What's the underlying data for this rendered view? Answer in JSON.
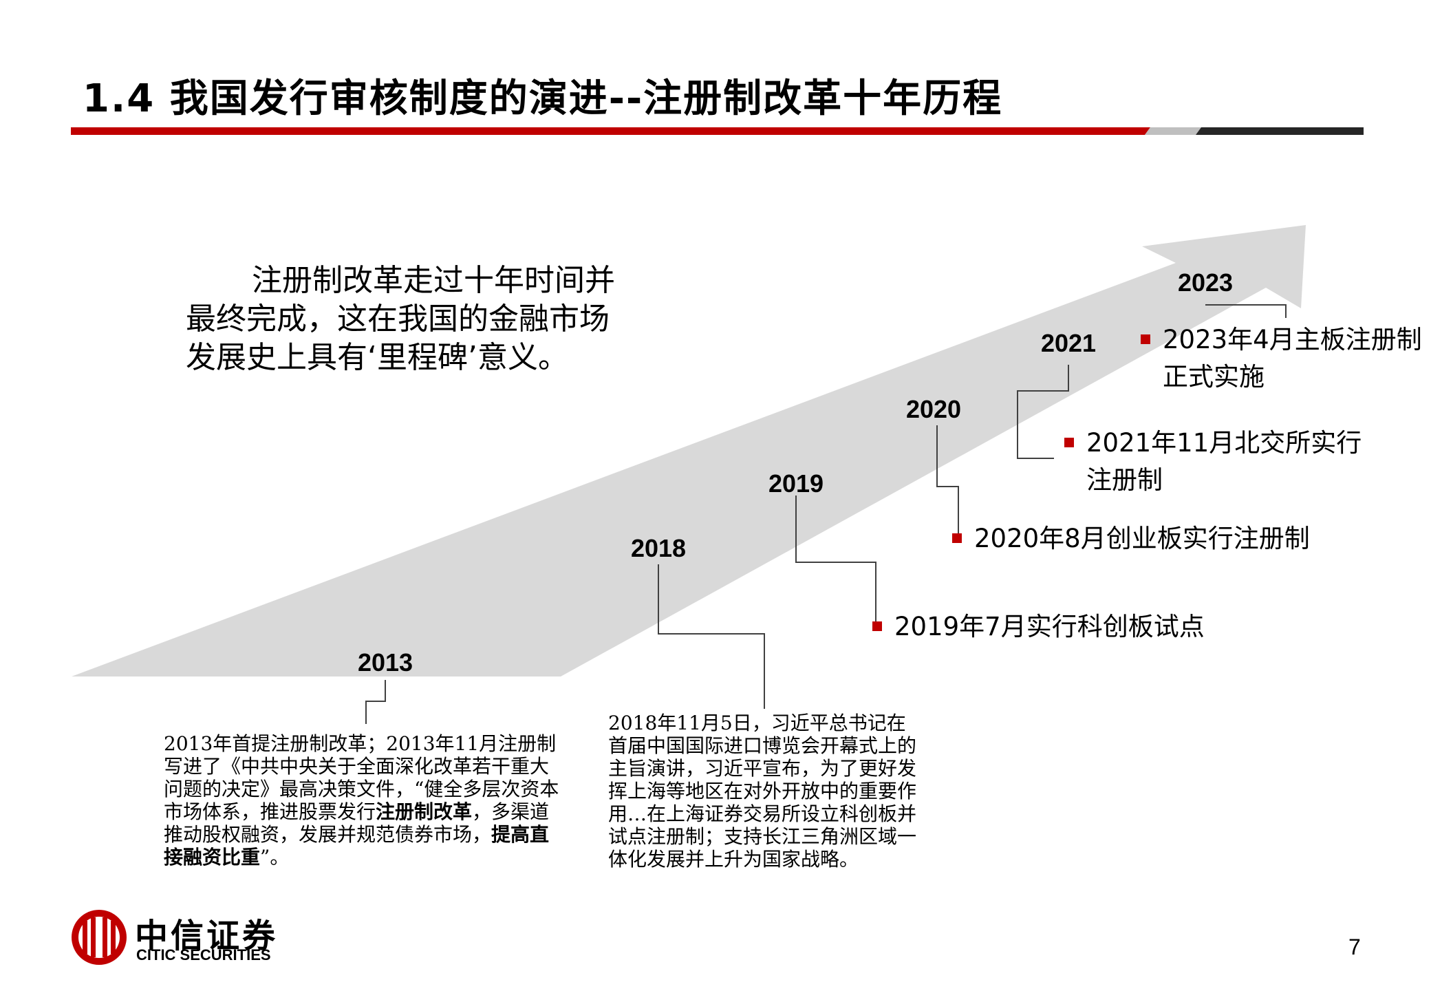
{
  "slide": {
    "title": "1.4 我国发行审核制度的演进--注册制改革十年历程",
    "page_number": "7"
  },
  "intro": {
    "line1": "注册制改革走过十年时间并",
    "line2": "最终完成，这在我国的金融市场",
    "line3": "发展史上具有‘里程碑’意义。"
  },
  "years": [
    "2013",
    "2018",
    "2019",
    "2020",
    "2021",
    "2023"
  ],
  "events": {
    "e2019": "2019年7月实行科创板试点",
    "e2020": "2020年8月创业板实行注册制",
    "e2021_line1": "2021年11月北交所实行",
    "e2021_line2": "注册制",
    "e2023_line1": "2023年4月主板注册制",
    "e2023_line2": "正式实施"
  },
  "note2013": {
    "p1": "2013年首提注册制改革；2013年11月注册制写进了《中共中央关于全面深化改革若干重大问题的决定》最高决策文件，“健全多层次资本市场体系，推进股票发行",
    "b1": "注册制改革",
    "p2": "，多渠道推动股权融资，发展并规范债券市场，",
    "b2": "提高直接融资比重",
    "p3": "”。"
  },
  "note2018": {
    "text": "2018年11月5日，习近平总书记在首届中国国际进口博览会开幕式上的主旨演讲，习近平宣布，为了更好发挥上海等地区在对外开放中的重要作用…在上海证券交易所设立科创板并试点注册制；支持长江三角洲区域一体化发展并上升为国家战略。"
  },
  "logo": {
    "name_cn": "中信证券",
    "name_en": "CITIC SECURITIES"
  },
  "colors": {
    "accent_red": "#c00000",
    "arrow_gray": "#d9d9d9",
    "bar_gray": "#bfbfbf",
    "bar_dark": "#262626"
  }
}
